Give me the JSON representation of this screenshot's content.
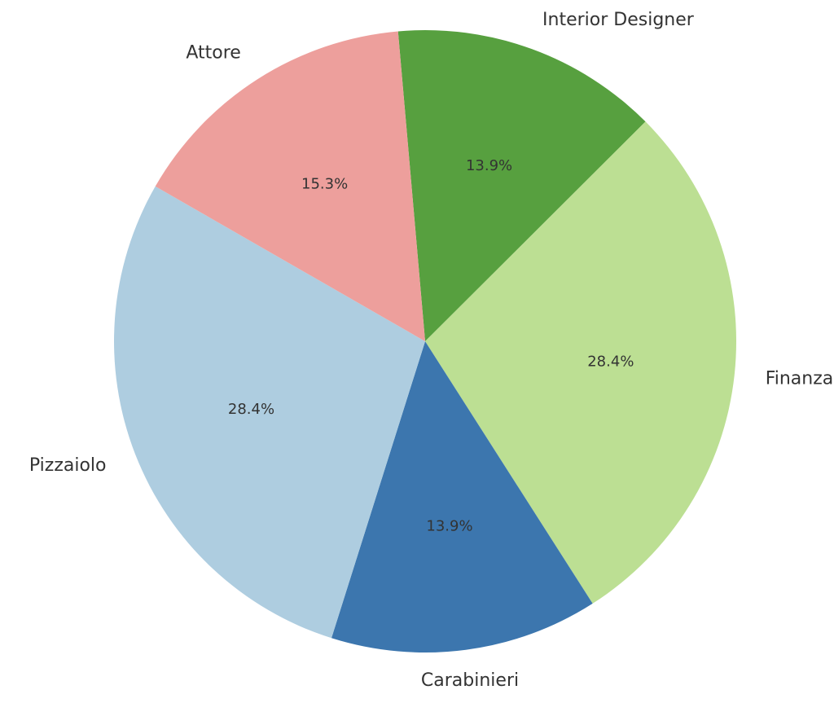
{
  "chart_data": {
    "type": "pie",
    "title": "",
    "start_angle_deg": 95,
    "direction": "clockwise",
    "slices": [
      {
        "label": "Interior Designer",
        "value": 13.9,
        "pct_label": "13.9%",
        "color": "#57a03f"
      },
      {
        "label": "Finanza",
        "value": 28.4,
        "pct_label": "28.4%",
        "color": "#bcdf93"
      },
      {
        "label": "Carabinieri",
        "value": 13.9,
        "pct_label": "13.9%",
        "color": "#3c76ae"
      },
      {
        "label": "Pizzaiolo",
        "value": 28.4,
        "pct_label": "28.4%",
        "color": "#aecde0"
      },
      {
        "label": "Attore",
        "value": 15.3,
        "pct_label": "15.3%",
        "color": "#ed9f9c"
      }
    ]
  }
}
